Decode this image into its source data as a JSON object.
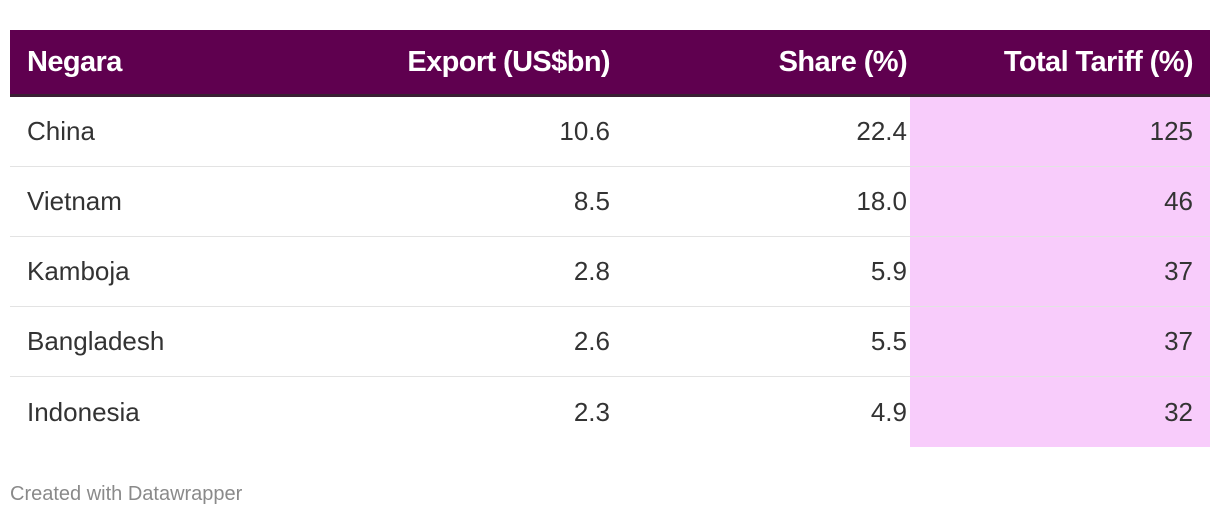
{
  "chart_data": {
    "type": "table",
    "columns": [
      "Negara",
      "Export (US$bn)",
      "Share (%)",
      "Total Tariff (%)"
    ],
    "rows": [
      [
        "China",
        "10.6",
        "22.4",
        "125"
      ],
      [
        "Vietnam",
        "8.5",
        "18.0",
        "46"
      ],
      [
        "Kamboja",
        "2.8",
        "5.9",
        "37"
      ],
      [
        "Bangladesh",
        "2.6",
        "5.5",
        "37"
      ],
      [
        "Indonesia",
        "2.3",
        "4.9",
        "32"
      ]
    ],
    "colors": {
      "header_bg": "#5f004f",
      "highlight_column_bg": "#f8ccfb"
    }
  },
  "footer": {
    "credit": "Created with Datawrapper"
  }
}
